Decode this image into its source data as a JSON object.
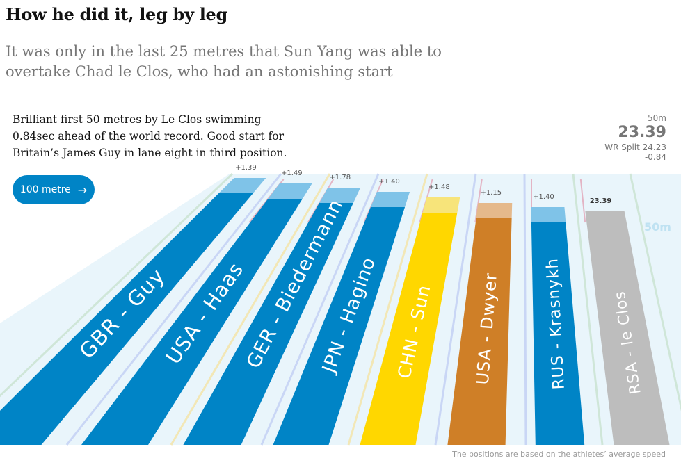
{
  "header": {
    "title": "How he did it, leg by leg",
    "subtitle": "It was only in the last 25 metres that Sun Yang was able to overtake Chad le Clos, who had an astonishing start"
  },
  "description": "Brilliant first 50 metres by Le Clos swimming 0.84sec ahead of the world record. Good start for Britain’s James Guy in lane eight in third position.",
  "next_button": {
    "label": "100 metre",
    "icon": "arrow-right-icon"
  },
  "stats": {
    "distance": "50m",
    "leader_time": "23.39",
    "wr_split": "WR Split 24.23",
    "wr_diff": "-0.84"
  },
  "pool": {
    "distance_marker": "50m",
    "lanes": [
      {
        "label": "GBR - Guy",
        "time": "+1.39",
        "color": "#0084c6",
        "tip": "#7fc3e8"
      },
      {
        "label": "USA - Haas",
        "time": "+1.49",
        "color": "#0084c6",
        "tip": "#7fc3e8"
      },
      {
        "label": "GER - Biedermann",
        "time": "+1.78",
        "color": "#0084c6",
        "tip": "#7fc3e8"
      },
      {
        "label": "JPN - Hagino",
        "time": "+1.40",
        "color": "#0084c6",
        "tip": "#7fc3e8"
      },
      {
        "label": "CHN - Sun",
        "time": "+1.48",
        "color": "#ffd700",
        "tip": "#f7e47a"
      },
      {
        "label": "USA - Dwyer",
        "time": "+1.15",
        "color": "#cf7f27",
        "tip": "#e5b98b"
      },
      {
        "label": "RUS - Krasnykh",
        "time": "+1.40",
        "color": "#0084c6",
        "tip": "#7fc3e8"
      },
      {
        "label": "RSA - le Clos",
        "time": "23.39",
        "color": "#bdbdbd",
        "tip": "#bdbdbd"
      }
    ]
  },
  "footnote": "The positions are based on the athletes’ average speed"
}
